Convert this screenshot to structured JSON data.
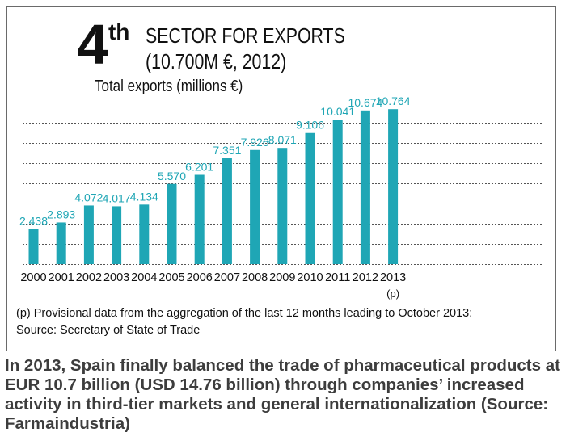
{
  "header": {
    "rank_number": "4",
    "rank_suffix": "th",
    "title_line1": "SECTOR FOR EXPORTS",
    "title_line2": "(10.700M €, 2012)",
    "subtitle": "Total exports (millions €)"
  },
  "chart_data": {
    "type": "bar",
    "title": "SECTOR FOR EXPORTS",
    "ylabel": "Total exports (millions €)",
    "categories": [
      "2000",
      "2001",
      "2002",
      "2003",
      "2004",
      "2005",
      "2006",
      "2007",
      "2008",
      "2009",
      "2010",
      "2011",
      "2012",
      "2013"
    ],
    "category_notes": [
      "",
      "",
      "",
      "",
      "",
      "",
      "",
      "",
      "",
      "",
      "",
      "",
      "",
      "(p)"
    ],
    "values": [
      2438,
      2893,
      4072,
      4017,
      4134,
      5570,
      6201,
      7351,
      7926,
      8071,
      9106,
      10041,
      10674,
      10764
    ],
    "value_labels": [
      "2.438",
      "2.893",
      "4.072",
      "4.017",
      "4.134",
      "5.570",
      "6.201",
      "7.351",
      "7.926",
      "8.071",
      "9.106",
      "10.041",
      "10.674",
      "10.764"
    ],
    "ylim": [
      0,
      11000
    ],
    "grid": true,
    "grid_style": "dotted horizontal",
    "bar_color": "#1fa6b5",
    "label_color": "#1fa6b5"
  },
  "footnote": {
    "line1": "(p) Provisional data from the aggregation of the last 12 months leading to October 2013:",
    "line2": "Source: Secretary of State of Trade"
  },
  "caption": "In 2013, Spain finally balanced the trade of pharmaceutical products at EUR 10.7 billion (USD 14.76 billion) through companies’ increased activity in third-tier markets and general internationalization (Source: Farmaindustria)"
}
